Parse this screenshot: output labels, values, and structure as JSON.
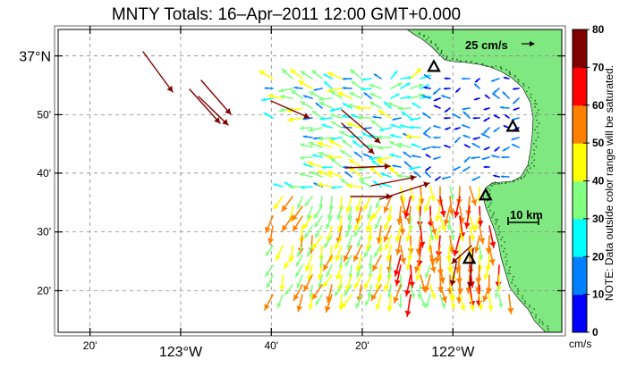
{
  "title": "MNTY Totals: 16–Apr–2011 12:00 GMT+0.000",
  "scale_arrow_label": "25 cm/s",
  "scale_bar_label": "10 km",
  "colorbar": {
    "unit": "cm/s",
    "note": "NOTE: Data outside color range will be saturated.",
    "ticks": [
      "0",
      "10",
      "20",
      "30",
      "40",
      "50",
      "60",
      "70",
      "80"
    ],
    "colors": [
      "#0000ff",
      "#0080ff",
      "#00ffff",
      "#80ff80",
      "#ffff00",
      "#ff8000",
      "#ff0000",
      "#800000"
    ]
  },
  "axes": {
    "x_ticks": [
      {
        "label": "20'",
        "lon": -123.333
      },
      {
        "label": "123°W",
        "lon": -123.0
      },
      {
        "label": "40'",
        "lon": -122.667
      },
      {
        "label": "20'",
        "lon": -122.333
      },
      {
        "label": "122°W",
        "lon": -122.0
      }
    ],
    "y_ticks": [
      {
        "label": "37°N",
        "lat": 37.0
      },
      {
        "label": "50'",
        "lat": 36.833
      },
      {
        "label": "40'",
        "lat": 36.667
      },
      {
        "label": "30'",
        "lat": 36.5
      },
      {
        "label": "20'",
        "lat": 36.333
      }
    ],
    "lon_range": [
      -123.45,
      -121.6
    ],
    "lat_range": [
      36.215,
      37.075
    ],
    "grid": "dashed"
  },
  "land_color": "#80e880",
  "site_marker": "triangle-icon",
  "sites": [
    {
      "lon": -122.07,
      "lat": 36.97
    },
    {
      "lon": -121.78,
      "lat": 36.8
    },
    {
      "lon": -121.88,
      "lat": 36.605
    },
    {
      "lon": -121.94,
      "lat": 36.425
    }
  ]
}
